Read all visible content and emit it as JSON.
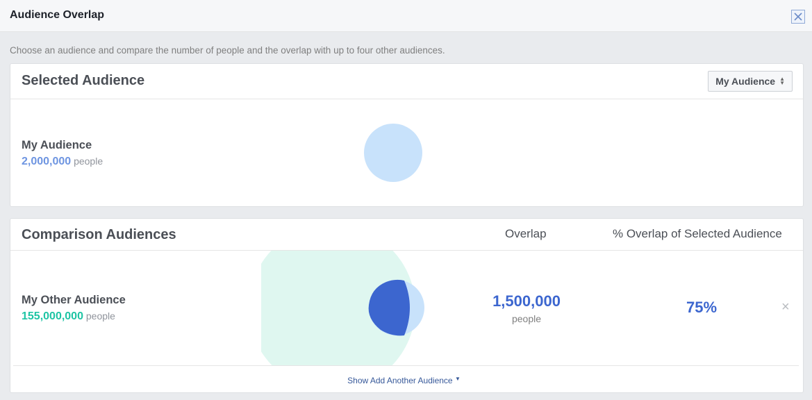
{
  "dialog": {
    "title": "Audience Overlap",
    "close_icon": "close-icon"
  },
  "intro": "Choose an audience and compare the number of people and the overlap with up to four other audiences.",
  "selected": {
    "title": "Selected Audience",
    "dropdown_value": "My Audience",
    "audience_name": "My Audience",
    "count": "2,000,000",
    "unit": "people",
    "circle_color": "#c8e2fb"
  },
  "comparison": {
    "title": "Comparison Audiences",
    "col_overlap": "Overlap",
    "col_pct": "% Overlap of Selected Audience",
    "rows": [
      {
        "name": "My Other Audience",
        "count": "155,000,000",
        "unit": "people",
        "overlap": "1,500,000",
        "overlap_unit": "people",
        "pct": "75%",
        "remove": "×"
      }
    ],
    "show_link": "Show Add Another Audience",
    "colors": {
      "large_circle": "#dff7f0",
      "selected_circle": "#c8e2fb",
      "overlap": "#3c66cf"
    }
  }
}
